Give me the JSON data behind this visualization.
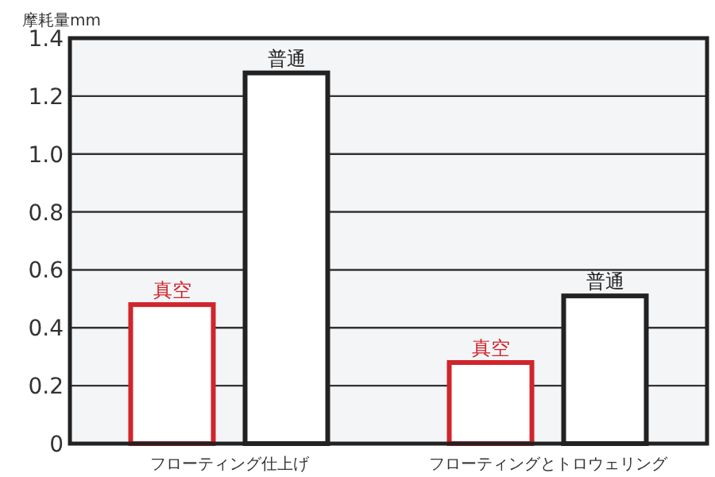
{
  "chart_data": {
    "type": "bar",
    "ylabel": "摩耗量mm",
    "categories": [
      "フローティング仕上げ",
      "フローティングとトロウェリング"
    ],
    "series": [
      {
        "name": "真空",
        "color": "#d0252b",
        "values": [
          0.48,
          0.28
        ]
      },
      {
        "name": "普通",
        "color": "#222222",
        "values": [
          1.28,
          0.51
        ]
      }
    ],
    "ylim": [
      0,
      1.4
    ],
    "yticks": [
      {
        "value": 0,
        "label": "0"
      },
      0.2,
      0.4,
      0.6,
      0.8,
      {
        "value": 1,
        "label": "1.0"
      },
      1.2,
      1.4
    ],
    "grid": "y"
  }
}
